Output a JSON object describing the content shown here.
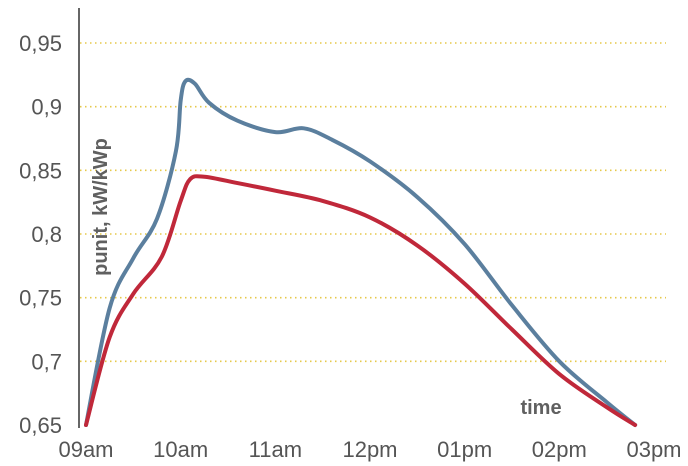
{
  "chart_data": {
    "type": "line",
    "title": "",
    "xlabel": "time",
    "ylabel": "punit, kW/kWp",
    "x": [
      "09am",
      "10am",
      "11am",
      "12pm",
      "01pm",
      "02pm",
      "03pm"
    ],
    "xlim": [
      "09am",
      "03pm"
    ],
    "ylim": [
      0.65,
      0.95
    ],
    "yticks": [
      "0,65",
      "0,7",
      "0,75",
      "0,8",
      "0,85",
      "0,9",
      "0,95"
    ],
    "grid": {
      "horizontal": true,
      "vertical": false,
      "style": "dotted",
      "color": "#e6c84a"
    },
    "legend": "none",
    "series": [
      {
        "color": "#5b7f9e",
        "points": [
          [
            0.0,
            0.65
          ],
          [
            0.25,
            0.742
          ],
          [
            0.5,
            0.781
          ],
          [
            0.75,
            0.812
          ],
          [
            0.95,
            0.865
          ],
          [
            1.0,
            0.905
          ],
          [
            1.05,
            0.92
          ],
          [
            1.15,
            0.918
          ],
          [
            1.3,
            0.903
          ],
          [
            1.6,
            0.889
          ],
          [
            2.0,
            0.88
          ],
          [
            2.3,
            0.883
          ],
          [
            2.6,
            0.874
          ],
          [
            3.0,
            0.857
          ],
          [
            3.5,
            0.829
          ],
          [
            4.0,
            0.792
          ],
          [
            4.5,
            0.744
          ],
          [
            5.0,
            0.7
          ],
          [
            5.5,
            0.668
          ],
          [
            5.8,
            0.65
          ]
        ]
      },
      {
        "color": "#c0283a",
        "points": [
          [
            0.0,
            0.65
          ],
          [
            0.25,
            0.719
          ],
          [
            0.5,
            0.753
          ],
          [
            0.8,
            0.782
          ],
          [
            1.0,
            0.826
          ],
          [
            1.1,
            0.843
          ],
          [
            1.25,
            0.845
          ],
          [
            1.6,
            0.84
          ],
          [
            2.0,
            0.834
          ],
          [
            2.5,
            0.826
          ],
          [
            3.0,
            0.813
          ],
          [
            3.5,
            0.791
          ],
          [
            4.0,
            0.761
          ],
          [
            4.5,
            0.725
          ],
          [
            5.0,
            0.69
          ],
          [
            5.5,
            0.664
          ],
          [
            5.8,
            0.65
          ]
        ]
      }
    ]
  }
}
